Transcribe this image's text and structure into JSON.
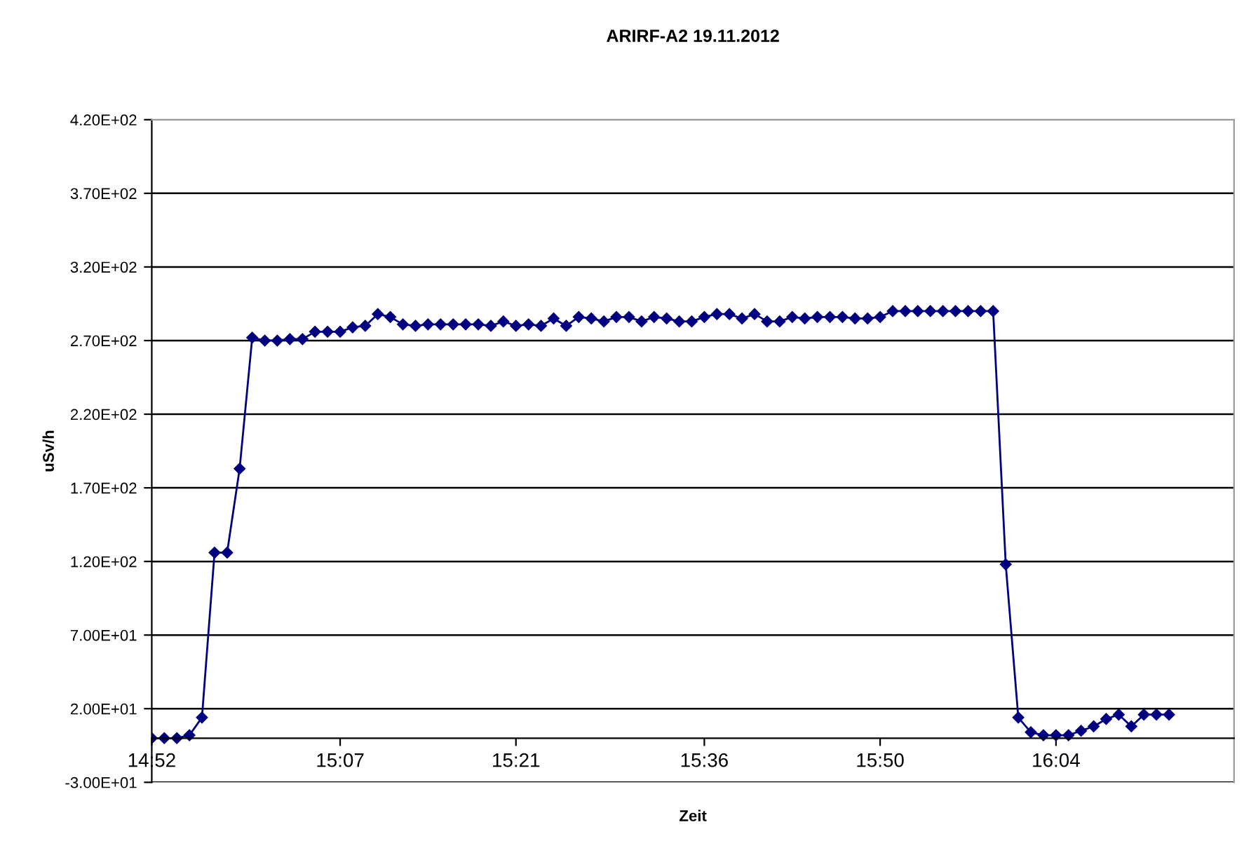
{
  "chart_data": {
    "type": "line",
    "title": "ARIRF-A2 19.11.2012",
    "xlabel": "Zeit",
    "ylabel": "uSv/h",
    "x": [
      14.8667,
      14.8833,
      14.9,
      14.9167,
      14.9333,
      14.95,
      14.9667,
      14.9833,
      15.0,
      15.0167,
      15.0333,
      15.05,
      15.0667,
      15.0833,
      15.1,
      15.1167,
      15.1333,
      15.15,
      15.1667,
      15.1833,
      15.2,
      15.2167,
      15.2333,
      15.25,
      15.2667,
      15.2833,
      15.3,
      15.3167,
      15.3333,
      15.35,
      15.3667,
      15.3833,
      15.4,
      15.4167,
      15.4333,
      15.45,
      15.4667,
      15.4833,
      15.5,
      15.5167,
      15.5333,
      15.55,
      15.5667,
      15.5833,
      15.6,
      15.6167,
      15.6333,
      15.65,
      15.6667,
      15.6833,
      15.7,
      15.7167,
      15.7333,
      15.75,
      15.7667,
      15.7833,
      15.8,
      15.8167,
      15.8333,
      15.85,
      15.8667,
      15.8833,
      15.9,
      15.9167,
      15.9333,
      15.95,
      15.9667,
      15.9833,
      16.0,
      16.0167,
      16.0333,
      16.05,
      16.0667,
      16.0833,
      16.1,
      16.1167,
      16.1333,
      16.15,
      16.1667,
      16.1833,
      16.2,
      16.2167
    ],
    "series": [
      {
        "color": "#000080",
        "values": [
          0,
          0,
          0,
          2,
          14,
          126,
          126,
          183,
          272,
          270,
          270,
          271,
          271,
          276,
          276,
          276,
          279,
          280,
          288,
          286,
          281,
          280,
          281,
          281,
          281,
          281,
          281,
          280,
          283,
          280,
          281,
          280,
          285,
          280,
          286,
          285,
          283,
          286,
          286,
          283,
          286,
          285,
          283,
          283,
          286,
          288,
          288,
          285,
          288,
          283,
          283,
          286,
          285,
          286,
          286,
          286,
          285,
          285,
          286,
          290,
          290,
          290,
          290,
          290,
          290,
          290,
          290,
          290,
          118,
          14,
          4,
          2,
          2,
          2,
          5,
          8,
          13,
          16,
          8,
          16,
          16,
          16
        ]
      }
    ],
    "xlim": [
      14.8667,
      16.303
    ],
    "xticks": [
      {
        "value": 14.8667,
        "label": "14:52"
      },
      {
        "value": 15.1167,
        "label": "15:07"
      },
      {
        "value": 15.35,
        "label": "15:21"
      },
      {
        "value": 15.6,
        "label": "15:36"
      },
      {
        "value": 15.8333,
        "label": "15:50"
      },
      {
        "value": 16.0667,
        "label": "16:04"
      }
    ],
    "ylim": [
      -30,
      420
    ],
    "yticks": [
      {
        "value": -30,
        "label": "-3.00E+01"
      },
      {
        "value": 20,
        "label": "2.00E+01"
      },
      {
        "value": 70,
        "label": "7.00E+01"
      },
      {
        "value": 120,
        "label": "1.20E+02"
      },
      {
        "value": 170,
        "label": "1.70E+02"
      },
      {
        "value": 220,
        "label": "2.20E+02"
      },
      {
        "value": 270,
        "label": "2.70E+02"
      },
      {
        "value": 320,
        "label": "3.20E+02"
      },
      {
        "value": 370,
        "label": "3.70E+02"
      },
      {
        "value": 420,
        "label": "4.20E+02"
      }
    ],
    "grid": "y",
    "legend": false,
    "marker": "diamond",
    "line_style": "solid"
  }
}
